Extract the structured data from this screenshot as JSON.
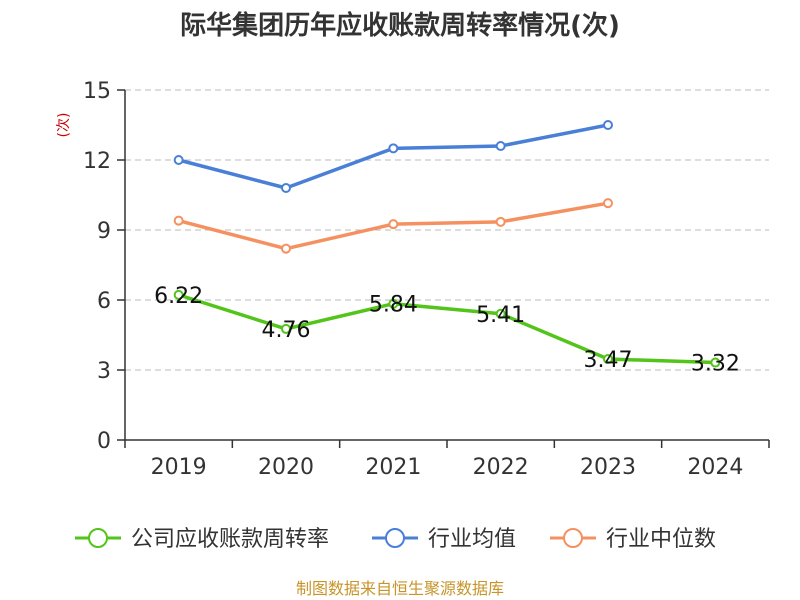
{
  "chart_data": {
    "type": "line",
    "title": "际华集团历年应收账款周转率情况(次)",
    "ylabel": "(次)",
    "xlabel": "",
    "categories": [
      "2019",
      "2020",
      "2021",
      "2022",
      "2023",
      "2024"
    ],
    "ylim": [
      0,
      15
    ],
    "yticks": [
      0,
      3,
      6,
      9,
      12,
      15
    ],
    "grid": true,
    "legend_position": "bottom",
    "series": [
      {
        "name": "公司应收账款周转率",
        "color": "#52c41a",
        "values": [
          6.22,
          4.76,
          5.84,
          5.41,
          3.47,
          3.32
        ],
        "labels": [
          "6.22",
          "4.76",
          "5.84",
          "5.41",
          "3.47",
          "3.32"
        ]
      },
      {
        "name": "行业均值",
        "color": "#4a7fd8",
        "values": [
          12.0,
          10.8,
          12.5,
          12.6,
          13.5,
          null
        ]
      },
      {
        "name": "行业中位数",
        "color": "#f59160",
        "values": [
          9.4,
          8.2,
          9.25,
          9.35,
          10.15,
          null
        ]
      }
    ]
  },
  "source": "制图数据来自恒生聚源数据库"
}
